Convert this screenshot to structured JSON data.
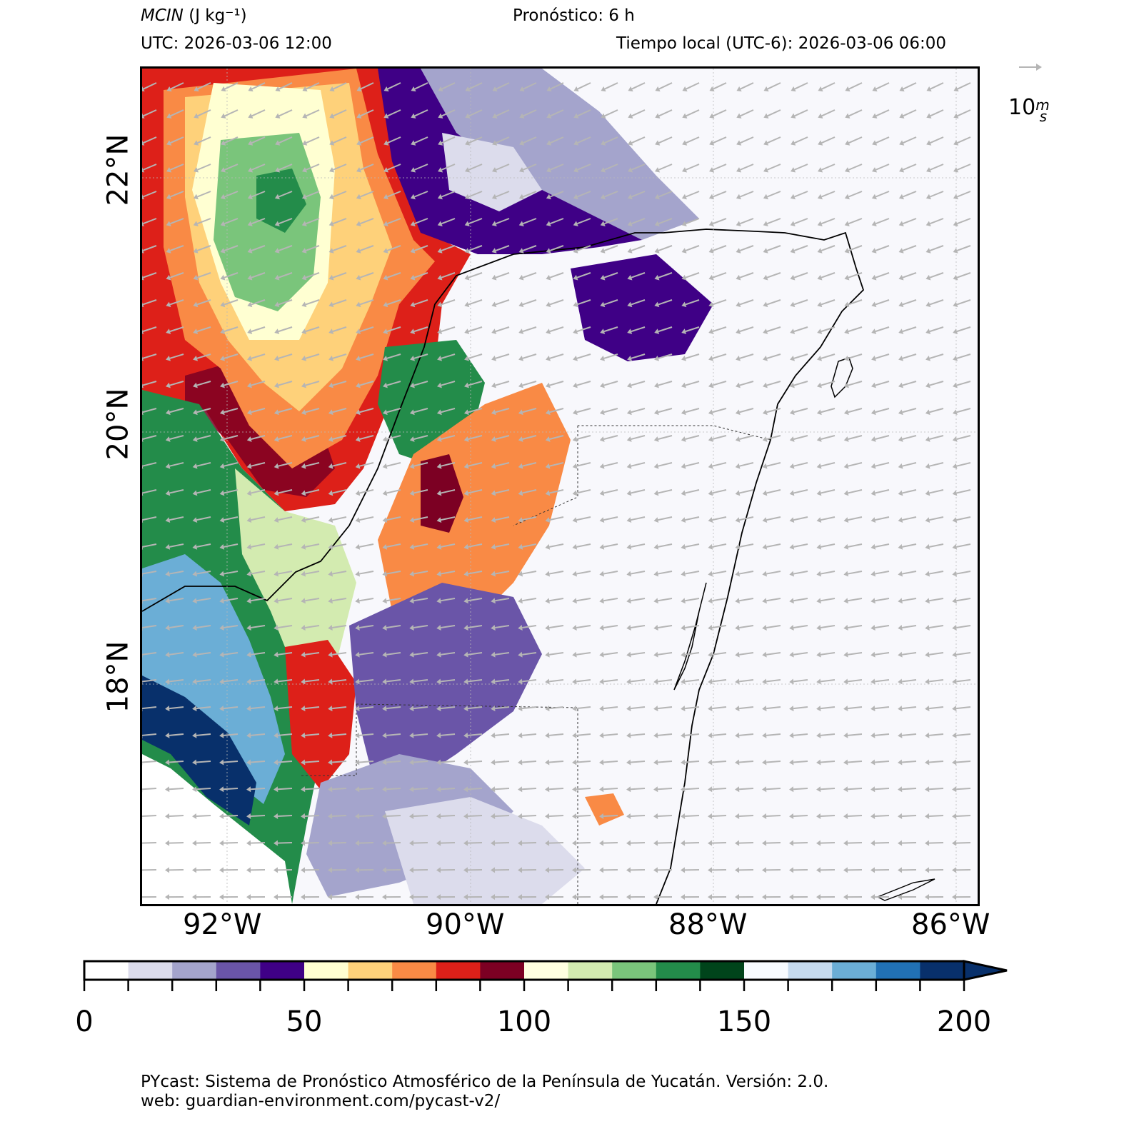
{
  "header": {
    "variable": "MCIN",
    "units": "(J kg⁻¹)",
    "forecast": "Pronóstico: 6 h",
    "utc": "UTC:  2026-03-06 12:00",
    "local_time": "Tiempo local (UTC-6): 2026-03-06 06:00"
  },
  "map": {
    "lon_labels": [
      "92°W",
      "90°W",
      "88°W",
      "86°W"
    ],
    "lat_labels": [
      "22°N",
      "20°N",
      "18°N"
    ],
    "lon_range": [
      -93.0,
      -86.0
    ],
    "lat_range": [
      15.9,
      22.8
    ],
    "wind_key": {
      "value": "10",
      "units": "m/s",
      "label": "10"
    },
    "colors": {
      "ocean_background": "#f8f8fc",
      "coastline": "#000000",
      "wind_arrows": "#b5b5b5"
    }
  },
  "colorbar": {
    "min": 0,
    "max": 200,
    "step": 10,
    "extend": "max",
    "tick_labels": [
      "0",
      "50",
      "100",
      "150",
      "200"
    ],
    "colors": [
      "#ffffff",
      "#dcdcec",
      "#a4a4cc",
      "#6a55a8",
      "#3f0086",
      "#ffffd2",
      "#fed17a",
      "#f98a45",
      "#dd2019",
      "#7c0023",
      "#ffffe0",
      "#d3ebb0",
      "#7ac57b",
      "#238c4a",
      "#00441b",
      "#f7fbff",
      "#c6dbef",
      "#6baed6",
      "#2171b5",
      "#08306b"
    ]
  },
  "footer": {
    "line1": "PYcast: Sistema de Pronóstico Atmosférico de la Península de Yucatán. Versión: 2.0.",
    "line2": "web: guardian-environment.com/pycast-v2/"
  }
}
